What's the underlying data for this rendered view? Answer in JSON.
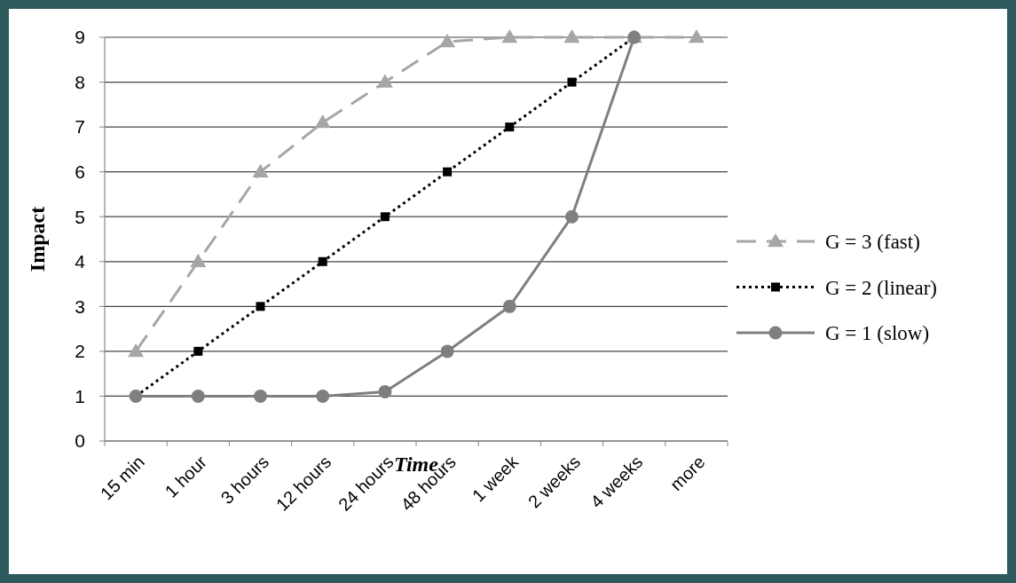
{
  "chart_data": {
    "type": "line",
    "xlabel": "Time",
    "ylabel": "Impact",
    "categories": [
      "15 min",
      "1 hour",
      "3 hours",
      "12 hours",
      "24 hours",
      "48 hours",
      "1 week",
      "2 weeks",
      "4 weeks",
      "more"
    ],
    "ylim": [
      0,
      9
    ],
    "yticks": [
      0,
      1,
      2,
      3,
      4,
      5,
      6,
      7,
      8,
      9
    ],
    "grid": "y",
    "legend": "right",
    "series": [
      {
        "name": "G = 3 (fast)",
        "color": "#a6a6a6",
        "marker": "triangle",
        "line_style": "dashed",
        "values": [
          2,
          4,
          6,
          7.1,
          8,
          8.9,
          9,
          9,
          9,
          9
        ]
      },
      {
        "name": "G = 2 (linear)",
        "color": "#000000",
        "marker": "square",
        "line_style": "dotted",
        "values": [
          1,
          2,
          3,
          4,
          5,
          6,
          7,
          8,
          9,
          null
        ]
      },
      {
        "name": "G = 1 (slow)",
        "color": "#7f7f7f",
        "marker": "circle",
        "line_style": "solid",
        "values": [
          1,
          1,
          1,
          1,
          1.1,
          2,
          3,
          5,
          9,
          null
        ]
      }
    ]
  }
}
